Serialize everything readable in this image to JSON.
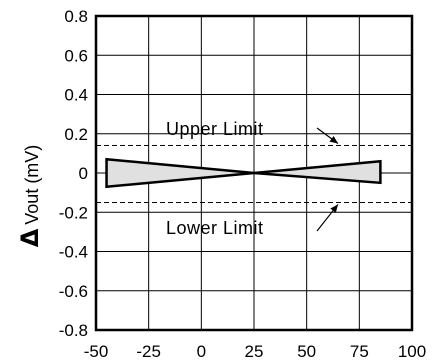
{
  "chart_data": {
    "type": "area",
    "title": "",
    "xlabel": "",
    "ylabel": {
      "symbol": "Δ",
      "text": "Vout  (mV)"
    },
    "xlim": [
      -50,
      100
    ],
    "ylim": [
      -0.8,
      0.8
    ],
    "x_ticks": [
      -50,
      -25,
      0,
      25,
      50,
      75,
      100
    ],
    "x_tick_labels": [
      "-50",
      "-25",
      "0",
      "25",
      "50",
      "75",
      "100"
    ],
    "y_ticks": [
      -0.8,
      -0.6,
      -0.4,
      -0.2,
      0,
      0.2,
      0.4,
      0.6,
      0.8
    ],
    "y_tick_labels": [
      "-0.8",
      "-0.6",
      "-0.4",
      "-0.2",
      "0",
      "0.2",
      "0.4",
      "0.6",
      "0.8"
    ],
    "grid": true,
    "series": [
      {
        "x": [
          -45,
          25,
          85
        ],
        "y_upper": [
          0.07,
          0.0,
          0.06
        ],
        "y_lower": [
          -0.07,
          0.0,
          -0.05
        ],
        "fill": "#e0e0e0"
      }
    ],
    "reference_lines": [
      {
        "label": "Upper Limit",
        "y": 0.14
      },
      {
        "label": "Lower Limit",
        "y": -0.15
      }
    ]
  }
}
